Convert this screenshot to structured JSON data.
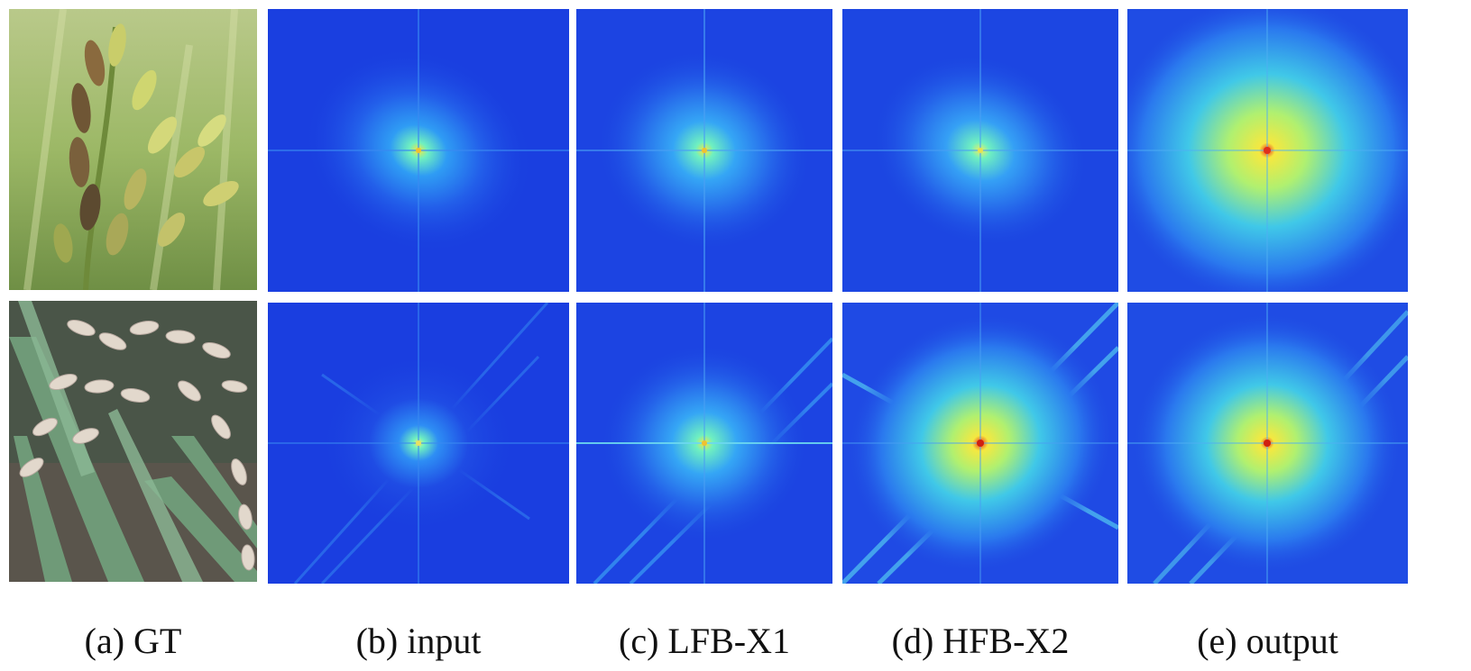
{
  "figure": {
    "columns": [
      {
        "id": "a",
        "caption": "(a) GT",
        "kind": "photo"
      },
      {
        "id": "b",
        "caption": "(b) input",
        "kind": "spectrum"
      },
      {
        "id": "c",
        "caption": "(c) LFB-X1",
        "kind": "spectrum"
      },
      {
        "id": "d",
        "caption": "(d) HFB-X2",
        "kind": "spectrum"
      },
      {
        "id": "e",
        "caption": "(e) output",
        "kind": "spectrum"
      }
    ],
    "rows": [
      {
        "id": "row1",
        "photo_subject": "rice-panicle-upright-green"
      },
      {
        "id": "row2",
        "photo_subject": "rice-panicle-drooping-pale"
      }
    ],
    "colors": {
      "spectrum_background": "#1a3fe0",
      "spectrum_mid": "#2f8ff5",
      "spectrum_high": "#4ff0d0",
      "spectrum_peak": "#f2e64a",
      "spectrum_center": "#e0301c",
      "photo1_background": "#8fae5a",
      "photo2_background": "#4a5548"
    }
  }
}
